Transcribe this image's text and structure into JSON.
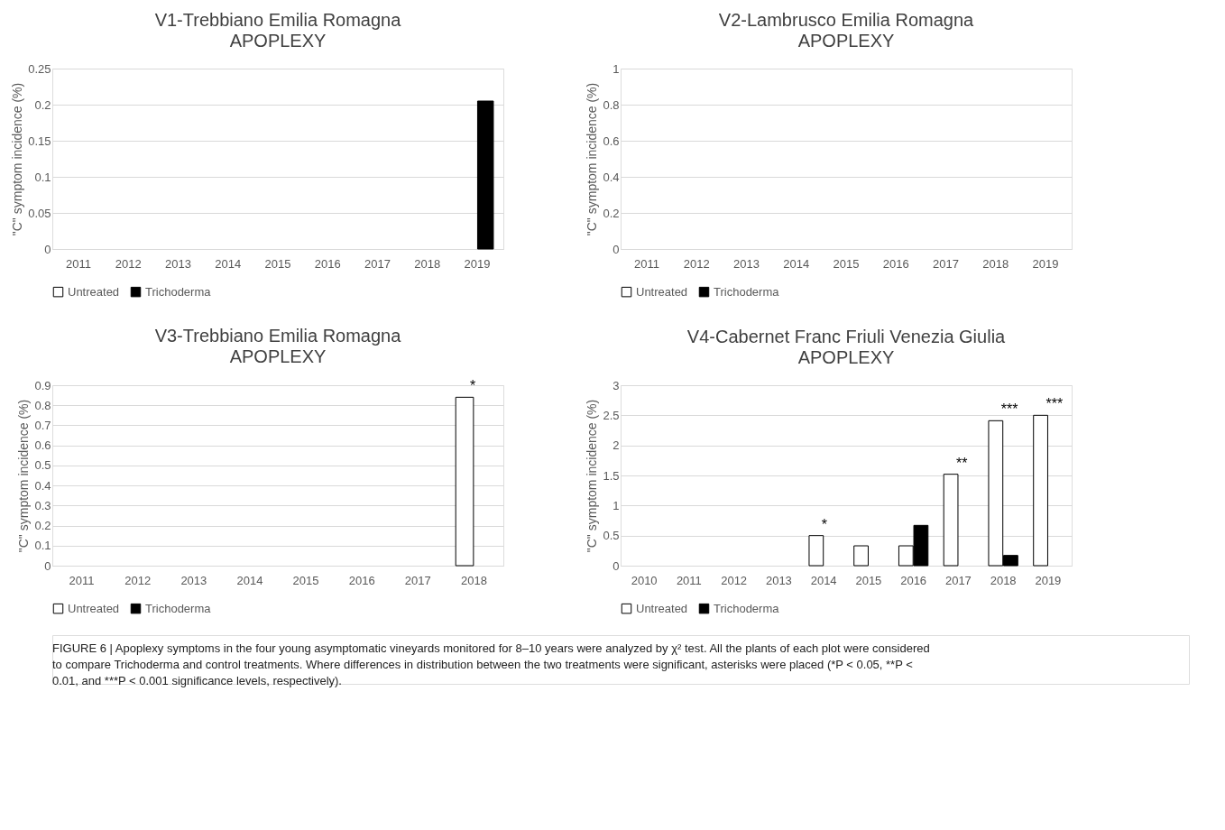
{
  "chart_data": [
    {
      "type": "bar",
      "title": "V1-Trebbiano Emilia Romagna",
      "subtitle": "APOPLEXY",
      "ylabel": "\"C\" symptom incidence (%)",
      "categories": [
        "2011",
        "2012",
        "2013",
        "2014",
        "2015",
        "2016",
        "2017",
        "2018",
        "2019"
      ],
      "series": [
        {
          "name": "Untreated",
          "color": "#ffffff",
          "values": [
            0,
            0,
            0,
            0,
            0,
            0,
            0,
            0,
            0
          ]
        },
        {
          "name": "Trichoderma",
          "color": "#000000",
          "values": [
            0,
            0,
            0,
            0,
            0,
            0,
            0,
            0,
            0.205
          ]
        }
      ],
      "ylim": [
        0,
        0.25
      ],
      "yticks": [
        0,
        0.05,
        0.1,
        0.15,
        0.2,
        0.25
      ],
      "grid": "y",
      "legend": "bottom"
    },
    {
      "type": "bar",
      "title": "V2-Lambrusco Emilia Romagna",
      "subtitle": "APOPLEXY",
      "ylabel": "\"C\" symptom incidence (%)",
      "categories": [
        "2011",
        "2012",
        "2013",
        "2014",
        "2015",
        "2016",
        "2017",
        "2018",
        "2019"
      ],
      "series": [
        {
          "name": "Untreated",
          "color": "#ffffff",
          "values": [
            0,
            0,
            0,
            0,
            0,
            0,
            0,
            0,
            0
          ]
        },
        {
          "name": "Trichoderma",
          "color": "#000000",
          "values": [
            0,
            0,
            0,
            0,
            0,
            0,
            0,
            0,
            0
          ]
        }
      ],
      "ylim": [
        0,
        1
      ],
      "yticks": [
        0,
        0.2,
        0.4,
        0.6,
        0.8,
        1
      ],
      "grid": "y",
      "legend": "bottom"
    },
    {
      "type": "bar",
      "title": "V3-Trebbiano Emilia Romagna",
      "subtitle": "APOPLEXY",
      "ylabel": "\"C\" symptom incidence (%)",
      "categories": [
        "2011",
        "2012",
        "2013",
        "2014",
        "2015",
        "2016",
        "2017",
        "2018"
      ],
      "series": [
        {
          "name": "Untreated",
          "color": "#ffffff",
          "values": [
            0,
            0,
            0,
            0,
            0,
            0,
            0,
            0.84
          ]
        },
        {
          "name": "Trichoderma",
          "color": "#000000",
          "values": [
            0,
            0,
            0,
            0,
            0,
            0,
            0,
            0
          ]
        }
      ],
      "ylim": [
        0,
        0.9
      ],
      "yticks": [
        0,
        0.1,
        0.2,
        0.3,
        0.4,
        0.5,
        0.6,
        0.7,
        0.8,
        0.9
      ],
      "grid": "y",
      "legend": "bottom",
      "annotations": [
        {
          "text": "*",
          "x": "2018",
          "y": 0.84
        }
      ]
    },
    {
      "type": "bar",
      "title": "V4-Cabernet Franc Friuli Venezia Giulia",
      "subtitle": "APOPLEXY",
      "ylabel": "\"C\" symptom incidence (%)",
      "categories": [
        "2010",
        "2011",
        "2012",
        "2013",
        "2014",
        "2015",
        "2016",
        "2017",
        "2018",
        "2019"
      ],
      "series": [
        {
          "name": "Untreated",
          "color": "#ffffff",
          "values": [
            0,
            0,
            0,
            0,
            0.5,
            0.33,
            0.33,
            1.52,
            2.41,
            2.5
          ]
        },
        {
          "name": "Trichoderma",
          "color": "#000000",
          "values": [
            0,
            0,
            0,
            0,
            0,
            0,
            0.67,
            0,
            0.17,
            0
          ]
        }
      ],
      "ylim": [
        0,
        3
      ],
      "yticks": [
        0,
        0.5,
        1,
        1.5,
        2,
        2.5,
        3
      ],
      "grid": "y",
      "legend": "bottom",
      "annotations": [
        {
          "text": "*",
          "x": "2014",
          "y": 0.5
        },
        {
          "text": "**",
          "x": "2017",
          "y": 1.52
        },
        {
          "text": "***",
          "x": "2018",
          "y": 2.41
        },
        {
          "text": "***",
          "x": "2019",
          "y": 2.5
        },
        "FIGURE 6 | Apoplexy symptoms in the four young asymptomatic vineyards monitored for 8–10 years were analyzed by χ² test. All the plants of each plot were considered to compare Trichoderma and control treatments. Where differences in distribution between the two treatments were significant, asterisks were placed (*P < 0.05, **P < 0.01, and ***P < 0.001 significance levels, respectively)."
      ]
    }
  ]
}
